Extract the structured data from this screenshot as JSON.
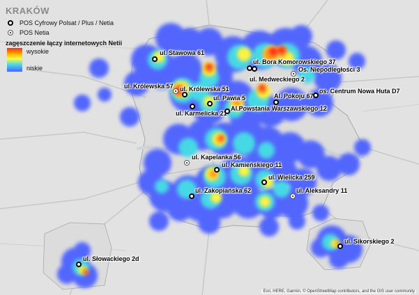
{
  "map": {
    "title": "KRAKÓW",
    "attribution": "Esri, HERE, Garmin, © OpenStreetMap contributors, and the GIS user community"
  },
  "legend": {
    "cp_label": "POS Cyfrowy Polsat / Plus / Netia",
    "netia_label": "POS Netia",
    "heat_title": "zagęszczenie łączy internetowych Netii",
    "high_label": "wysokie",
    "low_label": "niskie"
  },
  "colors": {
    "high": "#ff2a14",
    "mid": "#fffa40",
    "low": "#4b60ff",
    "background": "#e4e4e4"
  },
  "points": [
    {
      "label": "ul. Stawowa 61",
      "type": "cp"
    },
    {
      "label": "ul. Bora Komorowskiego 37",
      "type": "cp"
    },
    {
      "label": "Os. Niepodległości 3",
      "type": "netia"
    },
    {
      "label": "ul. Medweckiego 2",
      "type": "cp"
    },
    {
      "label": "ul. Królewska 57",
      "type": "netia"
    },
    {
      "label": "ul. Królewska 51",
      "type": "cp"
    },
    {
      "label": "ul. Pawia 5",
      "type": "cp"
    },
    {
      "label": "Al. Pokoju 67",
      "type": "cp"
    },
    {
      "label": "os. Centrum Nowa Huta D7",
      "type": "cp"
    },
    {
      "label": "ul. Karmelicka 21",
      "type": "cp"
    },
    {
      "label": "Al.Powstania Warszawskiego 12",
      "type": "cp"
    },
    {
      "label": "ul. Kapelanka 56",
      "type": "netia"
    },
    {
      "label": "ul. Kamieńskiego 11",
      "type": "cp"
    },
    {
      "label": "ul. Wielicka 259",
      "type": "cp"
    },
    {
      "label": "ul. Zakopiańska 62",
      "type": "cp"
    },
    {
      "label": "ul. Aleksandry 11",
      "type": "netia"
    },
    {
      "label": "ul. Sikorskiego 2",
      "type": "cp"
    },
    {
      "label": "ul. Słowackiego 2d",
      "type": "cp"
    }
  ]
}
